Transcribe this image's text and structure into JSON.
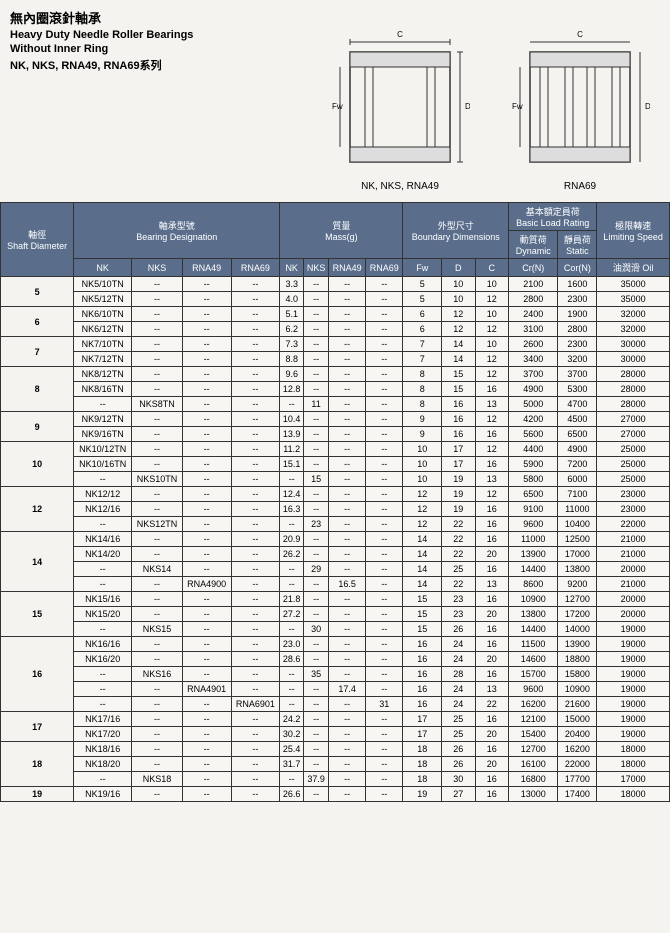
{
  "header": {
    "title_cn": "無內圈滾針軸承",
    "title_en1": "Heavy Duty Needle Roller Bearings",
    "title_en2": "Without Inner Ring",
    "series": "NK, NKS, RNA49, RNA69系列"
  },
  "diagrams": {
    "left_label": "NK, NKS, RNA49",
    "right_label": "RNA69"
  },
  "columns": {
    "shaft": {
      "cn": "軸徑",
      "en": "Shaft\nDiameter"
    },
    "designation": {
      "cn": "軸承型號",
      "en": "Bearing Designation"
    },
    "mass": {
      "cn": "質量",
      "en": "Mass(g)"
    },
    "boundary": {
      "cn": "外型尺寸",
      "en": "Boundary\nDimensions"
    },
    "load": {
      "cn": "基本額定員荷",
      "en": "Basic Load Rating"
    },
    "dynamic": {
      "cn": "動質荷",
      "en": "Dynamic"
    },
    "static": {
      "cn": "靜員荷",
      "en": "Static"
    },
    "speed": {
      "cn": "極限轉速",
      "en": "Limiting\nSpeed"
    },
    "sub": [
      "NK",
      "NKS",
      "RNA49",
      "RNA69",
      "NK",
      "NKS",
      "RNA49",
      "RNA69",
      "Fw",
      "D",
      "C",
      "Cr(N)",
      "Cor(N)",
      "油潤滑 Oil"
    ]
  },
  "rows": [
    {
      "d": "5",
      "span": 2,
      "c": [
        "NK5/10TN",
        "--",
        "--",
        "--",
        "3.3",
        "--",
        "--",
        "--",
        "5",
        "10",
        "10",
        "2100",
        "1600",
        "35000"
      ]
    },
    {
      "c": [
        "NK5/12TN",
        "--",
        "--",
        "--",
        "4.0",
        "--",
        "--",
        "--",
        "5",
        "10",
        "12",
        "2800",
        "2300",
        "35000"
      ]
    },
    {
      "d": "6",
      "span": 2,
      "c": [
        "NK6/10TN",
        "--",
        "--",
        "--",
        "5.1",
        "--",
        "--",
        "--",
        "6",
        "12",
        "10",
        "2400",
        "1900",
        "32000"
      ]
    },
    {
      "c": [
        "NK6/12TN",
        "--",
        "--",
        "--",
        "6.2",
        "--",
        "--",
        "--",
        "6",
        "12",
        "12",
        "3100",
        "2800",
        "32000"
      ]
    },
    {
      "d": "7",
      "span": 2,
      "c": [
        "NK7/10TN",
        "--",
        "--",
        "--",
        "7.3",
        "--",
        "--",
        "--",
        "7",
        "14",
        "10",
        "2600",
        "2300",
        "30000"
      ]
    },
    {
      "c": [
        "NK7/12TN",
        "--",
        "--",
        "--",
        "8.8",
        "--",
        "--",
        "--",
        "7",
        "14",
        "12",
        "3400",
        "3200",
        "30000"
      ]
    },
    {
      "d": "8",
      "span": 3,
      "c": [
        "NK8/12TN",
        "--",
        "--",
        "--",
        "9.6",
        "--",
        "--",
        "--",
        "8",
        "15",
        "12",
        "3700",
        "3700",
        "28000"
      ]
    },
    {
      "c": [
        "NK8/16TN",
        "--",
        "--",
        "--",
        "12.8",
        "--",
        "--",
        "--",
        "8",
        "15",
        "16",
        "4900",
        "5300",
        "28000"
      ]
    },
    {
      "c": [
        "--",
        "NKS8TN",
        "--",
        "--",
        "--",
        "11",
        "--",
        "--",
        "8",
        "16",
        "13",
        "5000",
        "4700",
        "28000"
      ]
    },
    {
      "d": "9",
      "span": 2,
      "c": [
        "NK9/12TN",
        "--",
        "--",
        "--",
        "10.4",
        "--",
        "--",
        "--",
        "9",
        "16",
        "12",
        "4200",
        "4500",
        "27000"
      ]
    },
    {
      "c": [
        "NK9/16TN",
        "--",
        "--",
        "--",
        "13.9",
        "--",
        "--",
        "--",
        "9",
        "16",
        "16",
        "5600",
        "6500",
        "27000"
      ]
    },
    {
      "d": "10",
      "span": 3,
      "c": [
        "NK10/12TN",
        "--",
        "--",
        "--",
        "11.2",
        "--",
        "--",
        "--",
        "10",
        "17",
        "12",
        "4400",
        "4900",
        "25000"
      ]
    },
    {
      "c": [
        "NK10/16TN",
        "--",
        "--",
        "--",
        "15.1",
        "--",
        "--",
        "--",
        "10",
        "17",
        "16",
        "5900",
        "7200",
        "25000"
      ]
    },
    {
      "c": [
        "--",
        "NKS10TN",
        "--",
        "--",
        "--",
        "15",
        "--",
        "--",
        "10",
        "19",
        "13",
        "5800",
        "6000",
        "25000"
      ]
    },
    {
      "d": "12",
      "span": 3,
      "c": [
        "NK12/12",
        "--",
        "--",
        "--",
        "12.4",
        "--",
        "--",
        "--",
        "12",
        "19",
        "12",
        "6500",
        "7100",
        "23000"
      ]
    },
    {
      "c": [
        "NK12/16",
        "--",
        "--",
        "--",
        "16.3",
        "--",
        "--",
        "--",
        "12",
        "19",
        "16",
        "9100",
        "11000",
        "23000"
      ]
    },
    {
      "c": [
        "--",
        "NKS12TN",
        "--",
        "--",
        "--",
        "23",
        "--",
        "--",
        "12",
        "22",
        "16",
        "9600",
        "10400",
        "22000"
      ]
    },
    {
      "d": "14",
      "span": 4,
      "c": [
        "NK14/16",
        "--",
        "--",
        "--",
        "20.9",
        "--",
        "--",
        "--",
        "14",
        "22",
        "16",
        "11000",
        "12500",
        "21000"
      ]
    },
    {
      "c": [
        "NK14/20",
        "--",
        "--",
        "--",
        "26.2",
        "--",
        "--",
        "--",
        "14",
        "22",
        "20",
        "13900",
        "17000",
        "21000"
      ]
    },
    {
      "c": [
        "--",
        "NKS14",
        "--",
        "--",
        "--",
        "29",
        "--",
        "--",
        "14",
        "25",
        "16",
        "14400",
        "13800",
        "20000"
      ]
    },
    {
      "c": [
        "--",
        "--",
        "RNA4900",
        "--",
        "--",
        "--",
        "16.5",
        "--",
        "14",
        "22",
        "13",
        "8600",
        "9200",
        "21000"
      ]
    },
    {
      "d": "15",
      "span": 3,
      "c": [
        "NK15/16",
        "--",
        "--",
        "--",
        "21.8",
        "--",
        "--",
        "--",
        "15",
        "23",
        "16",
        "10900",
        "12700",
        "20000"
      ]
    },
    {
      "c": [
        "NK15/20",
        "--",
        "--",
        "--",
        "27.2",
        "--",
        "--",
        "--",
        "15",
        "23",
        "20",
        "13800",
        "17200",
        "20000"
      ]
    },
    {
      "c": [
        "--",
        "NKS15",
        "--",
        "--",
        "--",
        "30",
        "--",
        "--",
        "15",
        "26",
        "16",
        "14400",
        "14000",
        "19000"
      ]
    },
    {
      "d": "16",
      "span": 5,
      "c": [
        "NK16/16",
        "--",
        "--",
        "--",
        "23.0",
        "--",
        "--",
        "--",
        "16",
        "24",
        "16",
        "11500",
        "13900",
        "19000"
      ]
    },
    {
      "c": [
        "NK16/20",
        "--",
        "--",
        "--",
        "28.6",
        "--",
        "--",
        "--",
        "16",
        "24",
        "20",
        "14600",
        "18800",
        "19000"
      ]
    },
    {
      "c": [
        "--",
        "NKS16",
        "--",
        "--",
        "--",
        "35",
        "--",
        "--",
        "16",
        "28",
        "16",
        "15700",
        "15800",
        "19000"
      ]
    },
    {
      "c": [
        "--",
        "--",
        "RNA4901",
        "--",
        "--",
        "--",
        "17.4",
        "--",
        "16",
        "24",
        "13",
        "9600",
        "10900",
        "19000"
      ]
    },
    {
      "c": [
        "--",
        "--",
        "--",
        "RNA6901",
        "--",
        "--",
        "--",
        "31",
        "16",
        "24",
        "22",
        "16200",
        "21600",
        "19000"
      ]
    },
    {
      "d": "17",
      "span": 2,
      "c": [
        "NK17/16",
        "--",
        "--",
        "--",
        "24.2",
        "--",
        "--",
        "--",
        "17",
        "25",
        "16",
        "12100",
        "15000",
        "19000"
      ]
    },
    {
      "c": [
        "NK17/20",
        "--",
        "--",
        "--",
        "30.2",
        "--",
        "--",
        "--",
        "17",
        "25",
        "20",
        "15400",
        "20400",
        "19000"
      ]
    },
    {
      "d": "18",
      "span": 3,
      "c": [
        "NK18/16",
        "--",
        "--",
        "--",
        "25.4",
        "--",
        "--",
        "--",
        "18",
        "26",
        "16",
        "12700",
        "16200",
        "18000"
      ]
    },
    {
      "c": [
        "NK18/20",
        "--",
        "--",
        "--",
        "31.7",
        "--",
        "--",
        "--",
        "18",
        "26",
        "20",
        "16100",
        "22000",
        "18000"
      ]
    },
    {
      "c": [
        "--",
        "NKS18",
        "--",
        "--",
        "--",
        "37.9",
        "--",
        "--",
        "18",
        "30",
        "16",
        "16800",
        "17700",
        "17000"
      ]
    },
    {
      "d": "19",
      "span": 1,
      "c": [
        "NK19/16",
        "--",
        "--",
        "--",
        "26.6",
        "--",
        "--",
        "--",
        "19",
        "27",
        "16",
        "13000",
        "17400",
        "18000"
      ]
    }
  ],
  "colors": {
    "header_bg": "#5a6e8c",
    "border": "#333333",
    "page_bg": "#f5f3ef"
  }
}
